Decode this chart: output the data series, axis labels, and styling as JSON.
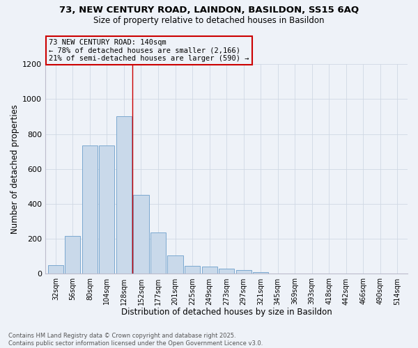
{
  "title_line1": "73, NEW CENTURY ROAD, LAINDON, BASILDON, SS15 6AQ",
  "title_line2": "Size of property relative to detached houses in Basildon",
  "xlabel": "Distribution of detached houses by size in Basildon",
  "ylabel": "Number of detached properties",
  "footer_line1": "Contains HM Land Registry data © Crown copyright and database right 2025.",
  "footer_line2": "Contains public sector information licensed under the Open Government Licence v3.0.",
  "annotation_title": "73 NEW CENTURY ROAD: 140sqm",
  "annotation_line2": "← 78% of detached houses are smaller (2,166)",
  "annotation_line3": "21% of semi-detached houses are larger (590) →",
  "bar_color": "#c9d9ea",
  "bar_edge_color": "#7aa8d0",
  "grid_color": "#d0d8e4",
  "bg_color": "#eef2f8",
  "annotation_box_edge_color": "#cc0000",
  "vline_color": "#cc0000",
  "categories": [
    "32sqm",
    "56sqm",
    "80sqm",
    "104sqm",
    "128sqm",
    "152sqm",
    "177sqm",
    "201sqm",
    "225sqm",
    "249sqm",
    "273sqm",
    "297sqm",
    "321sqm",
    "345sqm",
    "369sqm",
    "393sqm",
    "418sqm",
    "442sqm",
    "466sqm",
    "490sqm",
    "514sqm"
  ],
  "values": [
    50,
    215,
    735,
    735,
    900,
    450,
    235,
    105,
    47,
    42,
    30,
    20,
    10,
    0,
    0,
    0,
    0,
    0,
    0,
    0,
    0
  ],
  "vline_bin_index": 4,
  "ylim": [
    0,
    1200
  ],
  "yticks": [
    0,
    200,
    400,
    600,
    800,
    1000,
    1200
  ]
}
